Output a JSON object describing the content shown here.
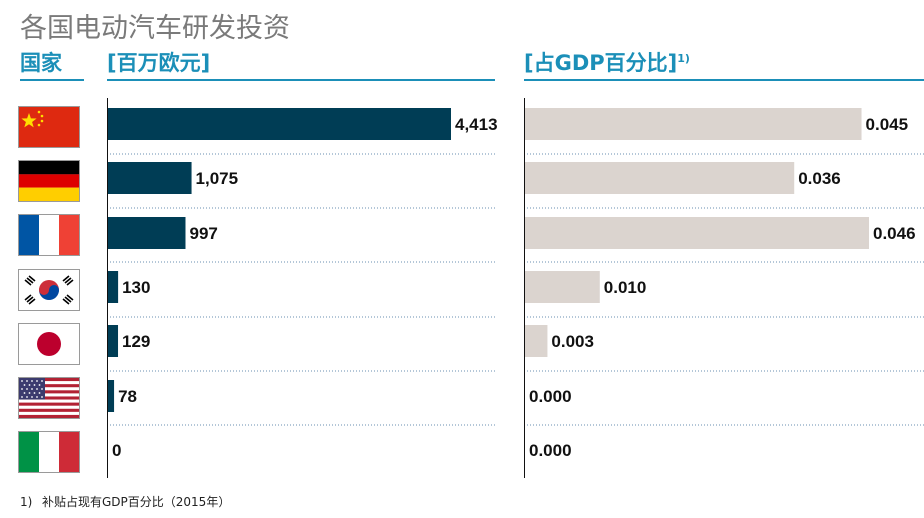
{
  "title": "各国电动汽车研发投资",
  "headers": {
    "country": "国家",
    "spend": "[百万欧元]",
    "gdp": "[占GDP百分比]",
    "gdp_sup": "1)"
  },
  "footnote": {
    "mark": "1)",
    "text": "补贴占现有GDP百分比（2015年）"
  },
  "countries": [
    {
      "flag": "china-flag-icon"
    },
    {
      "flag": "germany-flag-icon"
    },
    {
      "flag": "france-flag-icon"
    },
    {
      "flag": "south-korea-flag-icon"
    },
    {
      "flag": "japan-flag-icon"
    },
    {
      "flag": "usa-flag-icon"
    },
    {
      "flag": "italy-flag-icon"
    }
  ],
  "colors": {
    "accent": "#1b8fb8",
    "bar_spend": "#003d55",
    "bar_gdp": "#dbd4cf",
    "text": "#111111"
  },
  "chart_data": [
    {
      "type": "bar",
      "orientation": "horizontal",
      "title": "[百万欧元]",
      "values": [
        4413,
        1075,
        997,
        130,
        129,
        78,
        0
      ],
      "labels": [
        "4,413",
        "1,075",
        "997",
        "130",
        "129",
        "78",
        "0"
      ],
      "xlim": [
        0,
        4413
      ]
    },
    {
      "type": "bar",
      "orientation": "horizontal",
      "title": "[占GDP百分比]",
      "values": [
        0.045,
        0.036,
        0.046,
        0.01,
        0.003,
        0.0,
        0.0
      ],
      "labels": [
        "0.045",
        "0.036",
        "0.046",
        "0.010",
        "0.003",
        "0.000",
        "0.000"
      ],
      "xlim": [
        0,
        0.046
      ]
    }
  ]
}
